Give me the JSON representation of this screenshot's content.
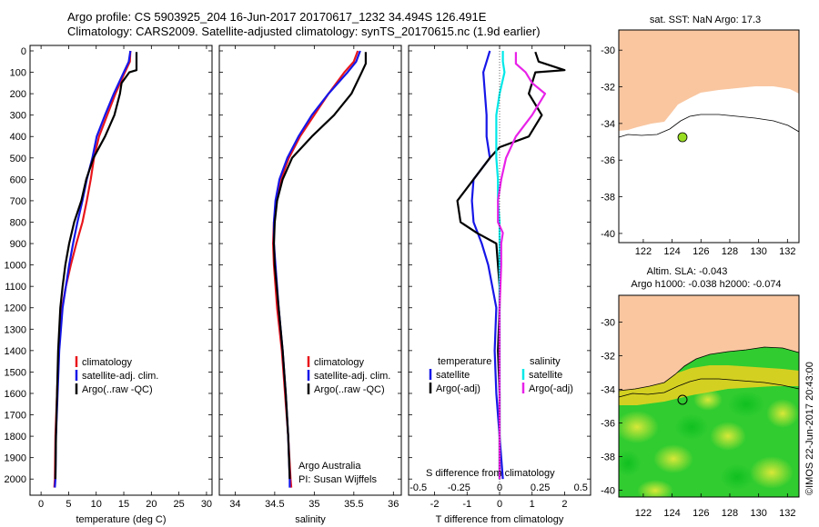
{
  "header": {
    "line1": "Argo profile: CS 5903925_204 16-Jun-2017 20170617_1232 34.494S 126.491E",
    "line2": "Climatology: CARS2009. Satellite-adjusted climatology: synTS_20170615.nc (1.9d earlier)"
  },
  "colors": {
    "climatology": "#e8161c",
    "satellite": "#1616e8",
    "argo": "#000000",
    "sal_sat": "#00e8e8",
    "sal_argo": "#e822e8",
    "land": "#f9c6a0",
    "marker_top": "#99dd22"
  },
  "panels": [
    {
      "id": "temperature",
      "xlabel": "temperature (deg C)",
      "xticks": [
        "0",
        "5",
        "10",
        "15",
        "20",
        "25",
        "30"
      ],
      "legend": [
        "climatology",
        "satellite-adj. clim.",
        "Argo(..raw -QC)"
      ]
    },
    {
      "id": "salinity",
      "xlabel": "salinity",
      "xticks": [
        "34",
        "34.5",
        "35",
        "35.5",
        "36"
      ],
      "legend": [
        "climatology",
        "satellite-adj. clim.",
        "Argo(..raw -QC)"
      ],
      "note1": "Argo Australia",
      "note2": "PI: Susan Wijffels"
    },
    {
      "id": "difference",
      "xlabel": "T difference from climatology",
      "xlabel_top": "S difference from climatology",
      "xticks": [
        "-2",
        "-1",
        "0",
        "1",
        "2"
      ],
      "xticks_top": [
        "-0.5",
        "-0.25",
        "0",
        "0.25",
        "0.5"
      ],
      "legend_temp_title": "temperature",
      "legend_sal_title": "salinity",
      "legend_temp": [
        "satellite",
        "Argo(-adj)"
      ],
      "legend_sal": [
        "satellite",
        "Argo(-adj)"
      ]
    }
  ],
  "depth_axis": {
    "ticks": [
      "0",
      "100",
      "200",
      "300",
      "400",
      "500",
      "600",
      "700",
      "800",
      "900",
      "1000",
      "1100",
      "1200",
      "1300",
      "1400",
      "1500",
      "1600",
      "1700",
      "1800",
      "1900",
      "2000"
    ]
  },
  "maps": {
    "top_title": "sat. SST: NaN Argo: 17.3",
    "bottom_title1": "Altim. SLA: -0.043",
    "bottom_title2": "Argo h1000: -0.038 h2000: -0.074",
    "lon_ticks": [
      "122",
      "124",
      "126",
      "128",
      "130",
      "132"
    ],
    "lat_ticks": [
      "-30",
      "-32",
      "-34",
      "-36",
      "-38",
      "-40"
    ],
    "side_label": "©IMOS 22-Jun-2017 20:43:00"
  },
  "chart_data": [
    {
      "type": "line",
      "title": "temperature",
      "xlabel": "temperature (deg C)",
      "ylabel": "",
      "xlim": [
        -2,
        31
      ],
      "ylim": [
        2050,
        0
      ],
      "series": [
        {
          "name": "climatology",
          "depth": [
            0,
            50,
            100,
            200,
            300,
            400,
            500,
            600,
            700,
            800,
            900,
            1000,
            1100,
            1200,
            1400,
            1600,
            1800,
            2000,
            2040
          ],
          "values": [
            16.2,
            16.1,
            15.2,
            13.5,
            12,
            10.5,
            9.6,
            9,
            8.3,
            7.5,
            6.4,
            5.4,
            4.5,
            3.8,
            3.2,
            2.9,
            2.6,
            2.5,
            2.4
          ]
        },
        {
          "name": "satellite-adj. clim.",
          "depth": [
            0,
            50,
            100,
            200,
            300,
            400,
            500,
            600,
            700,
            800,
            900,
            1000,
            1100,
            1200,
            1400,
            1600,
            1800,
            2000,
            2040
          ],
          "values": [
            16.2,
            15.9,
            15,
            13.2,
            11.6,
            10.1,
            9.3,
            8.3,
            7.5,
            6.6,
            5.8,
            5.1,
            4.5,
            3.9,
            3.3,
            3,
            2.7,
            2.6,
            2.5
          ]
        },
        {
          "name": "Argo(..raw -QC)",
          "depth": [
            5,
            50,
            90,
            100,
            150,
            200,
            300,
            400,
            500,
            600,
            700,
            800,
            900,
            1000,
            1100,
            1200,
            1400,
            1600,
            1800,
            2000
          ],
          "values": [
            17.3,
            17.3,
            17.3,
            16,
            14.6,
            14.3,
            13.3,
            11.6,
            9.5,
            8.2,
            7.3,
            6,
            5.1,
            4.4,
            3.9,
            3.5,
            3.1,
            2.9,
            2.7,
            2.6
          ]
        }
      ]
    },
    {
      "type": "line",
      "title": "salinity",
      "xlabel": "salinity",
      "ylabel": "",
      "xlim": [
        33.8,
        36.1
      ],
      "ylim": [
        2050,
        0
      ],
      "series": [
        {
          "name": "climatology",
          "depth": [
            0,
            50,
            100,
            200,
            300,
            400,
            500,
            600,
            700,
            800,
            900,
            1000,
            1200,
            1400,
            1600,
            1800,
            2000,
            2040
          ],
          "values": [
            35.55,
            35.5,
            35.38,
            35.18,
            35,
            34.82,
            34.68,
            34.58,
            34.52,
            34.49,
            34.48,
            34.49,
            34.53,
            34.59,
            34.63,
            34.67,
            34.7,
            34.71
          ]
        },
        {
          "name": "satellite-adj. clim.",
          "depth": [
            0,
            50,
            100,
            200,
            300,
            400,
            500,
            600,
            700,
            800,
            900,
            1000,
            1200,
            1400,
            1600,
            1800,
            2000,
            2040
          ],
          "values": [
            35.58,
            35.53,
            35.42,
            35.18,
            34.97,
            34.8,
            34.66,
            34.56,
            34.51,
            34.49,
            34.49,
            34.51,
            34.55,
            34.6,
            34.64,
            34.67,
            34.69,
            34.69
          ]
        },
        {
          "name": "Argo(..raw -QC)",
          "depth": [
            5,
            60,
            100,
            200,
            300,
            400,
            500,
            600,
            700,
            800,
            900,
            1000,
            1200,
            1400,
            1600,
            1800,
            2000
          ],
          "values": [
            35.65,
            35.65,
            35.6,
            35.47,
            35.25,
            34.97,
            34.72,
            34.6,
            34.53,
            34.5,
            34.49,
            34.5,
            34.55,
            34.6,
            34.64,
            34.67,
            34.69
          ]
        }
      ]
    },
    {
      "type": "line",
      "title": "difference from climatology",
      "xlabel": "T difference from climatology",
      "ylabel": "",
      "xlim": [
        -2.8,
        2.8
      ],
      "ylim": [
        2050,
        0
      ],
      "series": [
        {
          "name": "temperature satellite",
          "depth": [
            0,
            50,
            100,
            200,
            300,
            400,
            500,
            600,
            700,
            800,
            900,
            1000,
            1200,
            1400,
            1600,
            1800,
            2000
          ],
          "values": [
            -0.3,
            -0.4,
            -0.5,
            -0.45,
            -0.4,
            -0.4,
            -0.3,
            -0.8,
            -0.85,
            -0.8,
            -0.55,
            -0.35,
            -0.1,
            -0.15,
            -0.1,
            0,
            0.1
          ]
        },
        {
          "name": "temperature Argo(-adj)",
          "depth": [
            5,
            50,
            90,
            100,
            200,
            300,
            400,
            450,
            500,
            600,
            700,
            800,
            850,
            900,
            1000,
            1100,
            1200,
            1400,
            1600,
            1800,
            2000
          ],
          "values": [
            1.1,
            1.2,
            2,
            1.1,
            0.9,
            1.3,
            0.9,
            0,
            -0.3,
            -0.8,
            -1.3,
            -1.2,
            -0.7,
            -0.1,
            -0.05,
            0,
            0,
            -0.05,
            0,
            0,
            0
          ]
        },
        {
          "name": "salinity satellite",
          "depth": [
            0,
            50,
            100,
            200,
            300,
            400,
            500,
            600,
            700,
            800,
            900,
            1000,
            1200,
            1400,
            1600,
            1800,
            2000
          ],
          "values": [
            0.02,
            0.02,
            0.03,
            0,
            -0.02,
            -0.02,
            -0.02,
            -0.01,
            -0.01,
            0,
            0,
            0,
            0,
            0,
            0,
            0,
            0
          ]
        },
        {
          "name": "salinity Argo(-adj)",
          "depth": [
            5,
            60,
            100,
            150,
            200,
            300,
            400,
            500,
            600,
            700,
            800,
            850,
            900,
            1000,
            1200,
            1400,
            1600,
            1800,
            2000
          ],
          "values": [
            0.1,
            0.1,
            0.16,
            0.2,
            0.28,
            0.2,
            0.1,
            0.04,
            0.01,
            -0.01,
            -0.01,
            0.02,
            0.01,
            0.01,
            0,
            0,
            0,
            0,
            0
          ]
        }
      ]
    }
  ]
}
